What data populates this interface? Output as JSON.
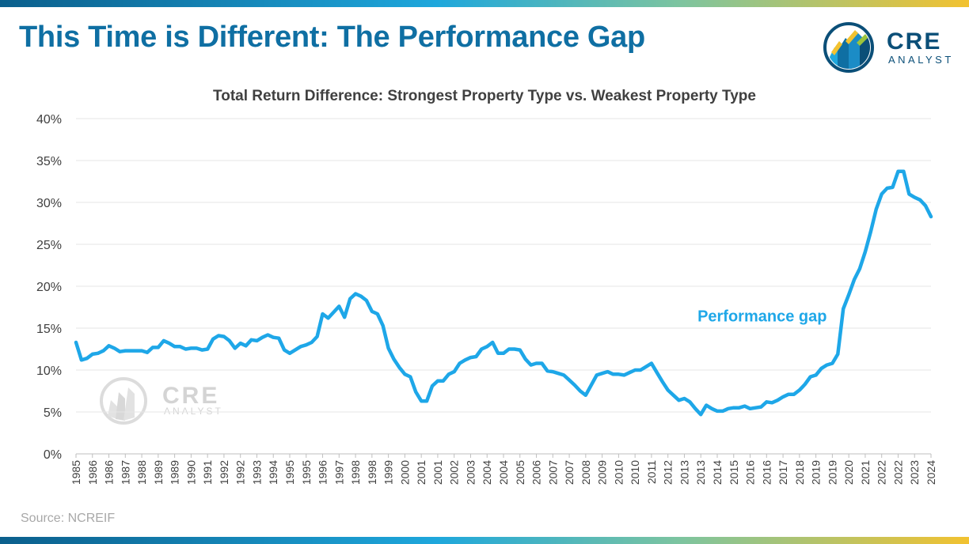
{
  "header": {
    "title": "This Time is Different: The Performance Gap",
    "logo_cre": "CRE",
    "logo_analyst": "ANALYST"
  },
  "watermark": {
    "cre": "CRE",
    "analyst": "ANALYST"
  },
  "source": "Source: NCREIF",
  "colors": {
    "title": "#0f6fa3",
    "line": "#1ea7e8",
    "grid": "#e6e6e6"
  },
  "chart_data": {
    "type": "line",
    "title": "Total Return Difference: Strongest Property Type vs. Weakest Property Type",
    "xlabel": "",
    "ylabel": "",
    "ylim": [
      0,
      40
    ],
    "ytick_labels": [
      "0%",
      "5%",
      "10%",
      "15%",
      "20%",
      "25%",
      "30%",
      "35%",
      "40%"
    ],
    "xtick_labels": [
      "1985",
      "1986",
      "1986",
      "1987",
      "1988",
      "1989",
      "1989",
      "1990",
      "1991",
      "1992",
      "1992",
      "1993",
      "1994",
      "1995",
      "1995",
      "1996",
      "1997",
      "1998",
      "1998",
      "1999",
      "2000",
      "2001",
      "2001",
      "2002",
      "2003",
      "2004",
      "2004",
      "2005",
      "2006",
      "2007",
      "2007",
      "2008",
      "2009",
      "2010",
      "2010",
      "2011",
      "2012",
      "2013",
      "2013",
      "2014",
      "2015",
      "2016",
      "2016",
      "2017",
      "2018",
      "2019",
      "2019",
      "2020",
      "2021",
      "2022",
      "2022",
      "2023",
      "2024"
    ],
    "grid": true,
    "legend": "none",
    "annotations": [
      {
        "text": "Performance gap",
        "x": 2016.3,
        "y": 15.8
      }
    ],
    "series": [
      {
        "name": "Performance gap",
        "x": [
          1985.0,
          1985.25,
          1985.5,
          1985.75,
          1986.0,
          1986.25,
          1986.5,
          1986.75,
          1987.0,
          1987.25,
          1987.5,
          1987.75,
          1988.0,
          1988.25,
          1988.5,
          1988.75,
          1989.0,
          1989.25,
          1989.5,
          1989.75,
          1990.0,
          1990.25,
          1990.5,
          1990.75,
          1991.0,
          1991.25,
          1991.5,
          1991.75,
          1992.0,
          1992.25,
          1992.5,
          1992.75,
          1993.0,
          1993.25,
          1993.5,
          1993.75,
          1994.0,
          1994.25,
          1994.5,
          1994.75,
          1995.0,
          1995.25,
          1995.5,
          1995.75,
          1996.0,
          1996.25,
          1996.5,
          1996.75,
          1997.0,
          1997.25,
          1997.5,
          1997.75,
          1998.0,
          1998.25,
          1998.5,
          1998.75,
          1999.0,
          1999.25,
          1999.5,
          1999.75,
          2000.0,
          2000.25,
          2000.5,
          2000.75,
          2001.0,
          2001.25,
          2001.5,
          2001.75,
          2002.0,
          2002.25,
          2002.5,
          2002.75,
          2003.0,
          2003.25,
          2003.5,
          2003.75,
          2004.0,
          2004.25,
          2004.5,
          2004.75,
          2005.0,
          2005.25,
          2005.5,
          2005.75,
          2006.0,
          2006.25,
          2006.5,
          2006.75,
          2007.0,
          2007.25,
          2007.5,
          2007.75,
          2008.0,
          2008.25,
          2008.5,
          2008.75,
          2009.0,
          2009.25,
          2009.5,
          2009.75,
          2010.0,
          2010.25,
          2010.5,
          2010.75,
          2011.0,
          2011.25,
          2011.5,
          2011.75,
          2012.0,
          2012.25,
          2012.5,
          2012.75,
          2013.0,
          2013.25,
          2013.5,
          2013.75,
          2014.0,
          2014.25,
          2014.5,
          2014.75,
          2015.0,
          2015.25,
          2015.5,
          2015.75,
          2016.0,
          2016.25,
          2016.5,
          2016.75,
          2017.0,
          2017.25,
          2017.5,
          2017.75,
          2018.0,
          2018.25,
          2018.5,
          2018.75,
          2019.0,
          2019.25,
          2019.5,
          2019.75,
          2020.0,
          2020.25,
          2020.5,
          2020.75,
          2021.0,
          2021.25,
          2021.5,
          2021.75,
          2022.0,
          2022.25,
          2022.5,
          2022.75,
          2023.0,
          2023.25,
          2023.5,
          2023.75,
          2024.0
        ],
        "values": [
          13.3,
          11.2,
          11.4,
          11.9,
          12.0,
          12.3,
          12.9,
          12.6,
          12.2,
          12.3,
          12.3,
          12.3,
          12.3,
          12.1,
          12.7,
          12.7,
          13.5,
          13.2,
          12.8,
          12.8,
          12.5,
          12.6,
          12.6,
          12.4,
          12.5,
          13.7,
          14.1,
          14.0,
          13.5,
          12.6,
          13.2,
          12.9,
          13.6,
          13.5,
          13.9,
          14.2,
          13.9,
          13.8,
          12.4,
          12.0,
          12.4,
          12.8,
          13.0,
          13.3,
          14.0,
          16.7,
          16.2,
          16.9,
          17.6,
          16.3,
          18.5,
          19.1,
          18.8,
          18.3,
          17.0,
          16.7,
          15.3,
          12.6,
          11.3,
          10.3,
          9.5,
          9.2,
          7.4,
          6.3,
          6.3,
          8.1,
          8.7,
          8.7,
          9.5,
          9.8,
          10.8,
          11.2,
          11.5,
          11.6,
          12.5,
          12.8,
          13.3,
          12.0,
          12.0,
          12.5,
          12.5,
          12.4,
          11.3,
          10.6,
          10.8,
          10.8,
          9.9,
          9.8,
          9.6,
          9.4,
          8.8,
          8.2,
          7.5,
          7.0,
          8.2,
          9.4,
          9.6,
          9.8,
          9.5,
          9.5,
          9.4,
          9.7,
          10.0,
          10.0,
          10.4,
          10.8,
          9.7,
          8.6,
          7.6,
          7.0,
          6.4,
          6.6,
          6.2,
          5.4,
          4.7,
          5.8,
          5.4,
          5.1,
          5.1,
          5.4,
          5.5,
          5.5,
          5.7,
          5.4,
          5.5,
          5.6,
          6.2,
          6.1,
          6.4,
          6.8,
          7.1,
          7.1,
          7.6,
          8.3,
          9.2,
          9.4,
          10.2,
          10.6,
          10.8,
          11.9,
          17.3,
          19.0,
          20.8,
          22.1,
          24.1,
          26.5,
          29.2,
          31.0,
          31.7,
          31.8,
          33.7,
          33.7,
          31.0,
          30.6,
          30.3,
          29.6,
          28.3
        ]
      }
    ]
  }
}
